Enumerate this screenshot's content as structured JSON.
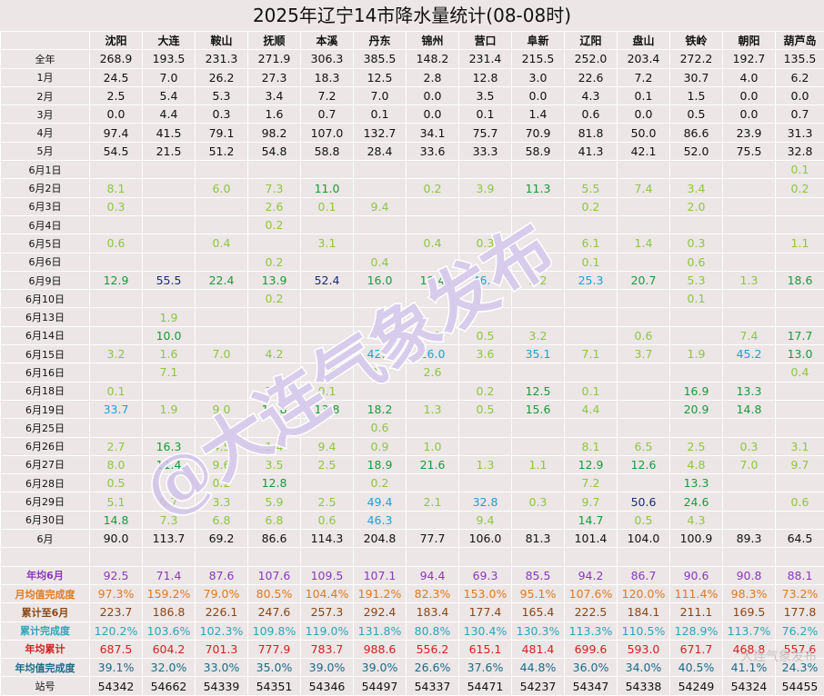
{
  "title": "2025年辽宁14市降水量统计(08-08时)",
  "colors": {
    "dark_navy": "#1a2a7a",
    "blue": "#1da0d8",
    "dark_green": "#1a9a3a",
    "light_green": "#8dc63f",
    "purple": "#8a3ab9",
    "orange": "#e07a1f",
    "brown": "#8b4513",
    "cyan": "#2aa6b9",
    "red": "#d42020",
    "teal": "#1a6a8a"
  },
  "columns": [
    "",
    "沈阳",
    "大连",
    "鞍山",
    "抚顺",
    "本溪",
    "丹东",
    "锦州",
    "营口",
    "阜新",
    "辽阳",
    "盘山",
    "铁岭",
    "朝阳",
    "葫芦岛"
  ],
  "rows": [
    {
      "label": "全年",
      "values": [
        "268.9",
        "193.5",
        "231.3",
        "271.9",
        "306.3",
        "385.5",
        "148.2",
        "231.4",
        "215.5",
        "252.0",
        "203.4",
        "272.2",
        "192.7",
        "135.5"
      ],
      "colors": [
        "",
        "",
        "",
        "",
        "",
        "",
        "",
        "",
        "",
        "",
        "",
        "",
        "",
        ""
      ]
    },
    {
      "label": "1月",
      "values": [
        "24.5",
        "7.0",
        "26.2",
        "27.3",
        "18.3",
        "12.5",
        "2.8",
        "12.8",
        "3.0",
        "22.6",
        "7.2",
        "30.7",
        "4.0",
        "6.2"
      ],
      "colors": [
        "",
        "",
        "",
        "",
        "",
        "",
        "",
        "",
        "",
        "",
        "",
        "",
        "",
        ""
      ]
    },
    {
      "label": "2月",
      "values": [
        "2.5",
        "5.4",
        "5.3",
        "3.4",
        "7.2",
        "7.0",
        "0.0",
        "3.5",
        "0.0",
        "4.3",
        "0.1",
        "1.5",
        "0.0",
        "0.0"
      ],
      "colors": [
        "",
        "",
        "",
        "",
        "",
        "",
        "",
        "",
        "",
        "",
        "",
        "",
        "",
        ""
      ]
    },
    {
      "label": "3月",
      "values": [
        "0.0",
        "4.4",
        "0.3",
        "1.6",
        "0.7",
        "0.1",
        "0.0",
        "0.1",
        "1.4",
        "0.6",
        "0.0",
        "0.5",
        "0.0",
        "0.7"
      ],
      "colors": [
        "",
        "",
        "",
        "",
        "",
        "",
        "",
        "",
        "",
        "",
        "",
        "",
        "",
        ""
      ]
    },
    {
      "label": "4月",
      "values": [
        "97.4",
        "41.5",
        "79.1",
        "98.2",
        "107.0",
        "132.7",
        "34.1",
        "75.7",
        "70.9",
        "81.8",
        "50.0",
        "86.6",
        "23.9",
        "31.3"
      ],
      "colors": [
        "",
        "",
        "",
        "",
        "",
        "",
        "",
        "",
        "",
        "",
        "",
        "",
        "",
        ""
      ]
    },
    {
      "label": "5月",
      "values": [
        "54.5",
        "21.5",
        "51.2",
        "54.8",
        "58.8",
        "28.4",
        "33.6",
        "33.3",
        "58.9",
        "41.3",
        "42.1",
        "52.0",
        "75.5",
        "32.8"
      ],
      "colors": [
        "",
        "",
        "",
        "",
        "",
        "",
        "",
        "",
        "",
        "",
        "",
        "",
        "",
        ""
      ]
    },
    {
      "label": "6月1日",
      "values": [
        "",
        "",
        "",
        "",
        "",
        "",
        "",
        "",
        "",
        "",
        "",
        "",
        "",
        "0.1"
      ],
      "colors": [
        "",
        "",
        "",
        "",
        "",
        "",
        "",
        "",
        "",
        "",
        "",
        "",
        "",
        "lg"
      ]
    },
    {
      "label": "6月2日",
      "values": [
        "8.1",
        "",
        "6.0",
        "7.3",
        "11.0",
        "",
        "0.2",
        "3.9",
        "11.3",
        "5.5",
        "7.4",
        "3.4",
        "",
        "0.2"
      ],
      "colors": [
        "lg",
        "",
        "lg",
        "lg",
        "dg",
        "",
        "lg",
        "lg",
        "dg",
        "lg",
        "lg",
        "lg",
        "",
        "lg"
      ]
    },
    {
      "label": "6月3日",
      "values": [
        "0.3",
        "",
        "",
        "2.6",
        "0.1",
        "9.4",
        "",
        "",
        "",
        "0.2",
        "",
        "2.0",
        "",
        ""
      ],
      "colors": [
        "lg",
        "",
        "",
        "lg",
        "lg",
        "lg",
        "",
        "",
        "",
        "lg",
        "",
        "lg",
        "",
        ""
      ]
    },
    {
      "label": "6月4日",
      "values": [
        "",
        "",
        "",
        "0.2",
        "",
        "",
        "",
        "",
        "",
        "",
        "",
        "",
        "",
        ""
      ],
      "colors": [
        "",
        "",
        "",
        "lg",
        "",
        "",
        "",
        "",
        "",
        "",
        "",
        "",
        "",
        ""
      ]
    },
    {
      "label": "6月5日",
      "values": [
        "0.6",
        "",
        "0.4",
        "",
        "3.1",
        "",
        "0.4",
        "0.3",
        "",
        "6.1",
        "1.4",
        "0.3",
        "",
        "1.1"
      ],
      "colors": [
        "lg",
        "",
        "lg",
        "",
        "lg",
        "",
        "lg",
        "lg",
        "",
        "lg",
        "lg",
        "lg",
        "",
        "lg"
      ]
    },
    {
      "label": "6月6日",
      "values": [
        "",
        "",
        "",
        "0.2",
        "",
        "0.4",
        "",
        "",
        "",
        "0.1",
        "",
        "0.6",
        "",
        ""
      ],
      "colors": [
        "",
        "",
        "",
        "lg",
        "",
        "lg",
        "",
        "",
        "",
        "lg",
        "",
        "lg",
        "",
        ""
      ]
    },
    {
      "label": "6月9日",
      "values": [
        "12.9",
        "55.5",
        "22.4",
        "13.9",
        "52.4",
        "16.0",
        "18.4",
        "46.4",
        "2.2",
        "25.3",
        "20.7",
        "5.3",
        "1.3",
        "18.6"
      ],
      "colors": [
        "dg",
        "nv",
        "dg",
        "dg",
        "nv",
        "dg",
        "dg",
        "bl",
        "lg",
        "bl",
        "dg",
        "lg",
        "lg",
        "dg"
      ]
    },
    {
      "label": "6月10日",
      "values": [
        "",
        "",
        "",
        "0.2",
        "",
        "",
        "",
        "",
        "",
        "",
        "",
        "0.1",
        "",
        ""
      ],
      "colors": [
        "",
        "",
        "",
        "lg",
        "",
        "",
        "",
        "",
        "",
        "",
        "",
        "lg",
        "",
        ""
      ]
    },
    {
      "label": "6月13日",
      "values": [
        "",
        "1.9",
        "",
        "",
        "",
        "",
        "",
        "",
        "",
        "",
        "",
        "",
        "",
        ""
      ],
      "colors": [
        "",
        "lg",
        "",
        "",
        "",
        "",
        "",
        "",
        "",
        "",
        "",
        "",
        "",
        ""
      ]
    },
    {
      "label": "6月14日",
      "values": [
        "",
        "10.0",
        "",
        "",
        "",
        "",
        "4.1",
        "0.5",
        "3.2",
        "",
        "0.6",
        "",
        "7.4",
        "17.7"
      ],
      "colors": [
        "",
        "dg",
        "",
        "",
        "",
        "",
        "lg",
        "lg",
        "lg",
        "",
        "lg",
        "",
        "lg",
        "dg"
      ]
    },
    {
      "label": "6月15日",
      "values": [
        "3.2",
        "1.6",
        "7.0",
        "4.2",
        "9.4",
        "42.5",
        "26.0",
        "3.6",
        "35.1",
        "7.1",
        "3.7",
        "1.9",
        "45.2",
        "13.0"
      ],
      "colors": [
        "lg",
        "lg",
        "lg",
        "lg",
        "lg",
        "bl",
        "bl",
        "lg",
        "bl",
        "lg",
        "lg",
        "lg",
        "bl",
        "dg"
      ]
    },
    {
      "label": "6月16日",
      "values": [
        "",
        "7.1",
        "",
        "",
        "9.4",
        "2.0",
        "2.6",
        "",
        "",
        "",
        "",
        "",
        "",
        "0.4"
      ],
      "colors": [
        "",
        "lg",
        "",
        "",
        "lg",
        "lg",
        "lg",
        "",
        "",
        "",
        "",
        "",
        "",
        "lg"
      ]
    },
    {
      "label": "6月18日",
      "values": [
        "0.1",
        "",
        "",
        "7.8",
        "0.1",
        "",
        "",
        "0.2",
        "12.5",
        "0.1",
        "",
        "16.9",
        "13.3",
        ""
      ],
      "colors": [
        "lg",
        "",
        "",
        "lg",
        "lg",
        "",
        "",
        "lg",
        "dg",
        "lg",
        "",
        "dg",
        "dg",
        ""
      ]
    },
    {
      "label": "6月19日",
      "values": [
        "33.7",
        "1.9",
        "9.0",
        "19.8",
        "13.8",
        "18.2",
        "1.3",
        "0.5",
        "15.6",
        "4.4",
        "",
        "20.9",
        "14.8",
        ""
      ],
      "colors": [
        "bl",
        "lg",
        "lg",
        "dg",
        "dg",
        "dg",
        "lg",
        "lg",
        "dg",
        "lg",
        "",
        "dg",
        "dg",
        ""
      ]
    },
    {
      "label": "6月25日",
      "values": [
        "",
        "",
        "",
        "",
        "",
        "0.6",
        "",
        "",
        "",
        "",
        "",
        "",
        "",
        ""
      ],
      "colors": [
        "",
        "",
        "",
        "",
        "",
        "lg",
        "",
        "",
        "",
        "",
        "",
        "",
        "",
        ""
      ]
    },
    {
      "label": "6月26日",
      "values": [
        "2.7",
        "16.3",
        "4.5",
        "1.4",
        "9.4",
        "0.9",
        "1.0",
        "",
        "",
        "8.1",
        "6.5",
        "2.5",
        "0.3",
        "3.1"
      ],
      "colors": [
        "lg",
        "dg",
        "lg",
        "lg",
        "lg",
        "lg",
        "lg",
        "",
        "",
        "lg",
        "lg",
        "lg",
        "lg",
        "lg"
      ]
    },
    {
      "label": "6月27日",
      "values": [
        "8.0",
        "11.4",
        "9.6",
        "3.5",
        "2.5",
        "18.9",
        "21.6",
        "1.3",
        "1.1",
        "12.9",
        "12.6",
        "4.8",
        "7.0",
        "9.7"
      ],
      "colors": [
        "lg",
        "dg",
        "lg",
        "lg",
        "lg",
        "dg",
        "dg",
        "lg",
        "lg",
        "dg",
        "dg",
        "lg",
        "lg",
        "lg"
      ]
    },
    {
      "label": "6月28日",
      "values": [
        "0.5",
        "",
        "0.2",
        "12.8",
        "",
        "0.2",
        "",
        "",
        "",
        "7.2",
        "",
        "13.3",
        "",
        ""
      ],
      "colors": [
        "lg",
        "",
        "lg",
        "dg",
        "",
        "lg",
        "",
        "",
        "",
        "lg",
        "",
        "dg",
        "",
        ""
      ]
    },
    {
      "label": "6月29日",
      "values": [
        "5.1",
        "0.7",
        "3.3",
        "5.9",
        "2.5",
        "49.4",
        "2.1",
        "32.8",
        "0.3",
        "9.7",
        "50.6",
        "24.6",
        "",
        "0.6"
      ],
      "colors": [
        "lg",
        "lg",
        "lg",
        "lg",
        "lg",
        "bl",
        "lg",
        "bl",
        "lg",
        "lg",
        "nv",
        "dg",
        "",
        "lg"
      ]
    },
    {
      "label": "6月30日",
      "values": [
        "14.8",
        "7.3",
        "6.8",
        "6.8",
        "0.6",
        "46.3",
        "",
        "9.4",
        "",
        "14.7",
        "0.5",
        "4.3",
        "",
        ""
      ],
      "colors": [
        "dg",
        "lg",
        "lg",
        "lg",
        "lg",
        "bl",
        "",
        "lg",
        "",
        "dg",
        "lg",
        "lg",
        "",
        ""
      ]
    },
    {
      "label": "6月",
      "values": [
        "90.0",
        "113.7",
        "69.2",
        "86.6",
        "114.3",
        "204.8",
        "77.7",
        "106.0",
        "81.3",
        "101.4",
        "104.0",
        "100.9",
        "89.3",
        "64.5"
      ],
      "colors": [
        "",
        "",
        "",
        "",
        "",
        "",
        "",
        "",
        "",
        "",
        "",
        "",
        "",
        ""
      ]
    },
    {
      "label": "",
      "values": [
        "",
        "",
        "",
        "",
        "",
        "",
        "",
        "",
        "",
        "",
        "",
        "",
        "",
        ""
      ],
      "colors": [
        "",
        "",
        "",
        "",
        "",
        "",
        "",
        "",
        "",
        "",
        "",
        "",
        "",
        ""
      ]
    },
    {
      "label": "年均6月",
      "values": [
        "92.5",
        "71.4",
        "87.6",
        "107.6",
        "109.5",
        "107.1",
        "94.4",
        "69.3",
        "85.5",
        "94.2",
        "86.7",
        "90.6",
        "90.8",
        "88.1"
      ],
      "colors": [
        "pu",
        "pu",
        "pu",
        "pu",
        "pu",
        "pu",
        "pu",
        "pu",
        "pu",
        "pu",
        "pu",
        "pu",
        "pu",
        "pu"
      ],
      "label_color": "pu"
    },
    {
      "label": "月均值完成度",
      "values": [
        "97.3%",
        "159.2%",
        "79.0%",
        "80.5%",
        "104.4%",
        "191.2%",
        "82.3%",
        "153.0%",
        "95.1%",
        "107.6%",
        "120.0%",
        "111.4%",
        "98.3%",
        "73.2%"
      ],
      "colors": [
        "or",
        "or",
        "or",
        "or",
        "or",
        "or",
        "or",
        "or",
        "or",
        "or",
        "or",
        "or",
        "or",
        "or"
      ],
      "label_color": "or"
    },
    {
      "label": "累计至6月",
      "values": [
        "223.7",
        "186.8",
        "226.1",
        "247.6",
        "257.3",
        "292.4",
        "183.4",
        "177.4",
        "165.4",
        "222.5",
        "184.1",
        "211.1",
        "169.5",
        "177.8"
      ],
      "colors": [
        "br",
        "br",
        "br",
        "br",
        "br",
        "br",
        "br",
        "br",
        "br",
        "br",
        "br",
        "br",
        "br",
        "br"
      ],
      "label_color": "br"
    },
    {
      "label": "累计完成度",
      "values": [
        "120.2%",
        "103.6%",
        "102.3%",
        "109.8%",
        "119.0%",
        "131.8%",
        "80.8%",
        "130.4%",
        "130.3%",
        "113.3%",
        "110.5%",
        "128.9%",
        "113.7%",
        "76.2%"
      ],
      "colors": [
        "cy",
        "cy",
        "cy",
        "cy",
        "cy",
        "cy",
        "cy",
        "cy",
        "cy",
        "cy",
        "cy",
        "cy",
        "cy",
        "cy"
      ],
      "label_color": "cy"
    },
    {
      "label": "年均累计",
      "values": [
        "687.5",
        "604.2",
        "701.3",
        "777.9",
        "783.7",
        "988.6",
        "556.2",
        "615.1",
        "481.4",
        "699.6",
        "593.0",
        "671.7",
        "468.8",
        "557.6"
      ],
      "colors": [
        "rd",
        "rd",
        "rd",
        "rd",
        "rd",
        "rd",
        "rd",
        "rd",
        "rd",
        "rd",
        "rd",
        "rd",
        "rd",
        "rd"
      ],
      "label_color": "rd"
    },
    {
      "label": "年均值完成度",
      "values": [
        "39.1%",
        "32.0%",
        "33.0%",
        "35.0%",
        "39.0%",
        "39.0%",
        "26.6%",
        "37.6%",
        "44.8%",
        "36.0%",
        "34.0%",
        "40.5%",
        "41.1%",
        "24.3%"
      ],
      "colors": [
        "tl",
        "tl",
        "tl",
        "tl",
        "tl",
        "tl",
        "tl",
        "tl",
        "tl",
        "tl",
        "tl",
        "tl",
        "tl",
        "tl"
      ],
      "label_color": "tl"
    },
    {
      "label": "站号",
      "values": [
        "54342",
        "54662",
        "54339",
        "54351",
        "54346",
        "54497",
        "54337",
        "54471",
        "54237",
        "54347",
        "54338",
        "54249",
        "54324",
        "54455"
      ],
      "colors": [
        "",
        "",
        "",
        "",
        "",
        "",
        "",
        "",
        "",
        "",
        "",
        "",
        "",
        ""
      ]
    }
  ],
  "watermark": "@大连气象发布",
  "credit": "大连气象发布"
}
